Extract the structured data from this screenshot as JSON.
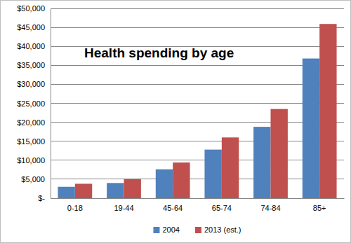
{
  "chart_data": {
    "type": "bar",
    "title": "Health spending by age",
    "categories": [
      "0-18",
      "19-44",
      "45-64",
      "65-74",
      "74-84",
      "85+"
    ],
    "series": [
      {
        "name": "2004",
        "color": "#4f81bd",
        "values": [
          3000,
          4000,
          7600,
          12800,
          18800,
          36800
        ]
      },
      {
        "name": "2013 (est.)",
        "color": "#c0504d",
        "values": [
          3800,
          5000,
          9400,
          16000,
          23500,
          45900
        ]
      }
    ],
    "ylim": [
      0,
      50000
    ],
    "yticks": [
      {
        "value": 0,
        "label": "$-"
      },
      {
        "value": 5000,
        "label": "$5,000"
      },
      {
        "value": 10000,
        "label": "$10,000"
      },
      {
        "value": 15000,
        "label": "$15,000"
      },
      {
        "value": 20000,
        "label": "$20,000"
      },
      {
        "value": 25000,
        "label": "$25,000"
      },
      {
        "value": 30000,
        "label": "$30,000"
      },
      {
        "value": 35000,
        "label": "$35,000"
      },
      {
        "value": 40000,
        "label": "$40,000"
      },
      {
        "value": 45000,
        "label": "$45,000"
      },
      {
        "value": 50000,
        "label": "$50,000"
      }
    ],
    "grid": true,
    "legend": "bottom"
  }
}
